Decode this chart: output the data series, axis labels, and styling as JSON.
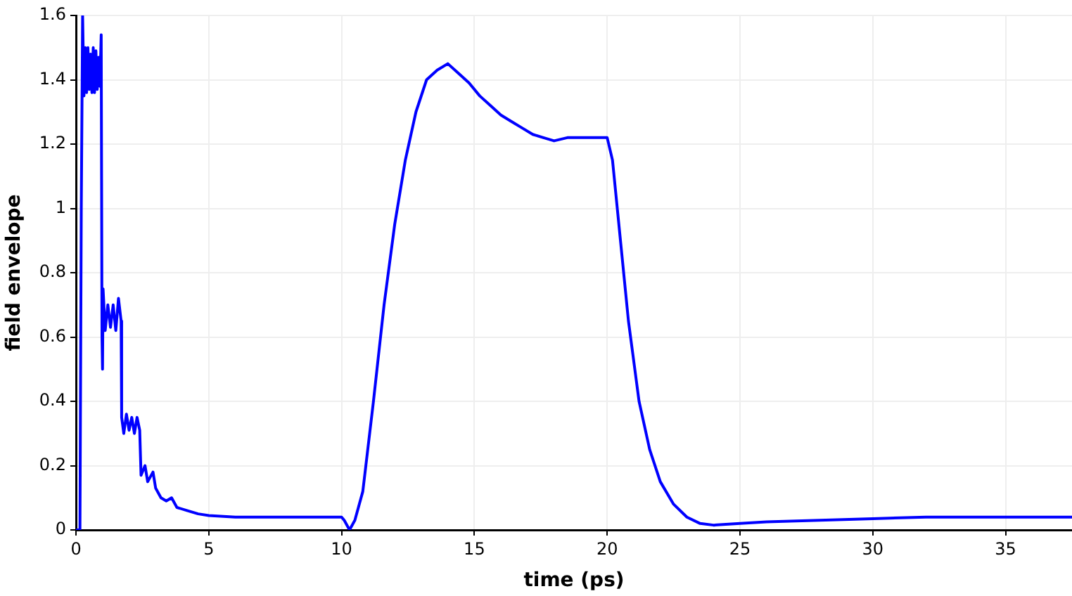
{
  "chart_data": {
    "type": "line",
    "xlabel": "time (ps)",
    "ylabel": "field envelope",
    "x": [
      0,
      0.15,
      0.2,
      0.25,
      0.3,
      0.35,
      0.4,
      0.45,
      0.5,
      0.55,
      0.6,
      0.65,
      0.7,
      0.75,
      0.8,
      0.85,
      0.9,
      0.95,
      0.98,
      1.0,
      1.02,
      1.1,
      1.2,
      1.3,
      1.4,
      1.5,
      1.6,
      1.7,
      1.72,
      1.8,
      1.9,
      2.0,
      2.1,
      2.2,
      2.3,
      2.4,
      2.45,
      2.6,
      2.7,
      2.9,
      3.0,
      3.2,
      3.4,
      3.6,
      3.8,
      4.2,
      4.6,
      5,
      6,
      7,
      8,
      9,
      10,
      10.1,
      10.3,
      10.5,
      10.8,
      11.2,
      11.6,
      12,
      12.4,
      12.8,
      13.2,
      13.6,
      14,
      14.4,
      14.8,
      15.2,
      15.6,
      16,
      16.4,
      16.8,
      17.2,
      17.6,
      18,
      18.5,
      19,
      19.5,
      20,
      20.2,
      20.5,
      20.8,
      21.2,
      21.6,
      22,
      22.5,
      23,
      23.5,
      24,
      25,
      26,
      28,
      30,
      32,
      34,
      36,
      37.5
    ],
    "series": [
      {
        "color": "#0000ff",
        "values": [
          0,
          0,
          1.0,
          1.6,
          1.35,
          1.5,
          1.36,
          1.5,
          1.37,
          1.48,
          1.36,
          1.5,
          1.36,
          1.49,
          1.37,
          1.47,
          1.38,
          1.54,
          0.6,
          0.5,
          0.75,
          0.62,
          0.7,
          0.63,
          0.7,
          0.62,
          0.72,
          0.65,
          0.35,
          0.3,
          0.36,
          0.31,
          0.35,
          0.3,
          0.35,
          0.31,
          0.17,
          0.2,
          0.15,
          0.18,
          0.13,
          0.1,
          0.09,
          0.1,
          0.07,
          0.06,
          0.05,
          0.045,
          0.04,
          0.04,
          0.04,
          0.04,
          0.04,
          0.03,
          0.0,
          0.03,
          0.12,
          0.4,
          0.7,
          0.95,
          1.15,
          1.3,
          1.4,
          1.43,
          1.45,
          1.42,
          1.39,
          1.35,
          1.32,
          1.29,
          1.27,
          1.25,
          1.23,
          1.22,
          1.21,
          1.22,
          1.22,
          1.22,
          1.22,
          1.15,
          0.9,
          0.65,
          0.4,
          0.25,
          0.15,
          0.08,
          0.04,
          0.02,
          0.015,
          0.02,
          0.025,
          0.03,
          0.035,
          0.04,
          0.04,
          0.04,
          0.04
        ]
      }
    ],
    "xlim": [
      0,
      37.5
    ],
    "xticks": [
      0,
      5,
      10,
      15,
      20,
      25,
      30,
      35
    ],
    "ylim": [
      0,
      1.6
    ],
    "yticks": [
      0,
      {
        "value": 0.2,
        "label": "0.2"
      },
      {
        "value": 0.4,
        "label": "0.4"
      },
      {
        "value": 0.6,
        "label": "0.6"
      },
      {
        "value": 0.8,
        "label": "0.8"
      },
      1,
      {
        "value": 1.2,
        "label": "1.2"
      },
      {
        "value": 1.4,
        "label": "1.4"
      },
      {
        "value": 1.6,
        "label": "1.6"
      }
    ],
    "grid": true,
    "legend": false,
    "marker": "none",
    "line_style": "solid"
  }
}
